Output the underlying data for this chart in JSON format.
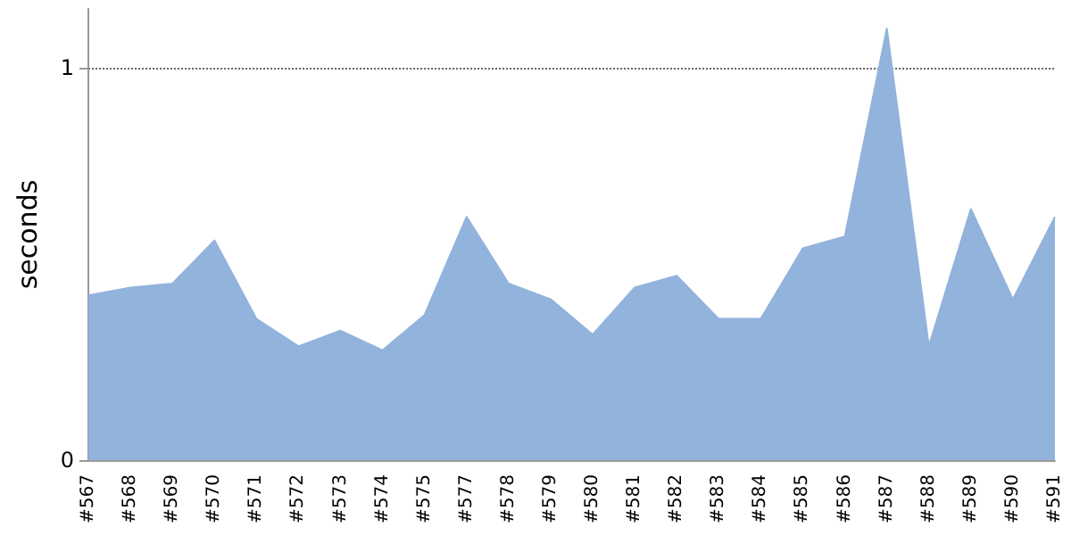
{
  "chart_data": {
    "type": "area",
    "ylabel": "seconds",
    "categories": [
      "#567",
      "#568",
      "#569",
      "#570",
      "#571",
      "#572",
      "#573",
      "#574",
      "#575",
      "#577",
      "#578",
      "#579",
      "#580",
      "#581",
      "#582",
      "#583",
      "#584",
      "#585",
      "#586",
      "#587",
      "#588",
      "#589",
      "#590",
      "#591"
    ],
    "series": [
      {
        "color": "#92b3dc",
        "values": [
          0.42,
          0.44,
          0.45,
          0.56,
          0.36,
          0.29,
          0.33,
          0.28,
          0.37,
          0.62,
          0.45,
          0.41,
          0.32,
          0.44,
          0.47,
          0.36,
          0.36,
          0.54,
          0.57,
          1.1,
          0.29,
          0.64,
          0.41,
          0.62
        ]
      }
    ],
    "ylim": [
      0,
      1.15
    ],
    "yticks": [
      0,
      1
    ],
    "grid": "y",
    "marker": "none"
  }
}
